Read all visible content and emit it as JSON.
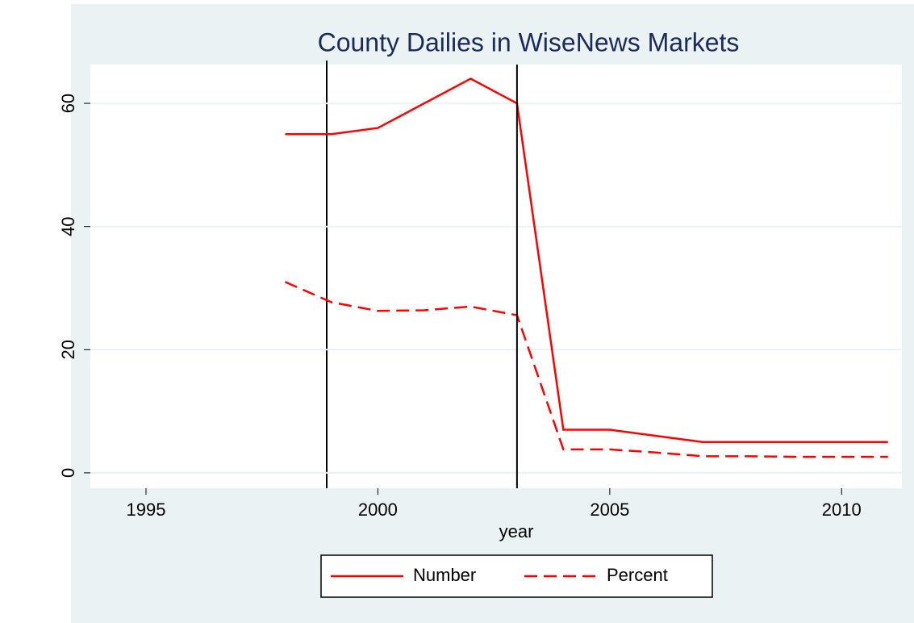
{
  "chart_data": {
    "type": "line",
    "title": "County Dailies in WiseNews Markets",
    "x_label": "year",
    "x": [
      1998,
      1999,
      2000,
      2001,
      2002,
      2003,
      2004,
      2005,
      2006,
      2007,
      2008,
      2009,
      2010,
      2011
    ],
    "series": [
      {
        "name": "Number",
        "color": "#ff0000",
        "dash": "solid",
        "values": [
          55,
          55,
          56,
          60,
          64,
          60,
          7,
          7,
          6,
          5,
          5,
          5,
          5,
          5
        ]
      },
      {
        "name": "Percent",
        "color": "#ff0000",
        "dash": "dashed",
        "values": [
          31,
          27.7,
          26.3,
          26.4,
          27,
          25.6,
          3.8,
          3.8,
          3.3,
          2.7,
          2.7,
          2.6,
          2.6,
          2.6
        ]
      }
    ],
    "xlim": [
      1993.8,
      2011.3
    ],
    "xticks": [
      1995,
      2000,
      2005,
      2010
    ],
    "ylim": [
      -2.5,
      66.3
    ],
    "yticks": [
      0,
      20,
      40,
      60
    ],
    "xline": 2003,
    "grid": true,
    "legend": "bottom"
  }
}
